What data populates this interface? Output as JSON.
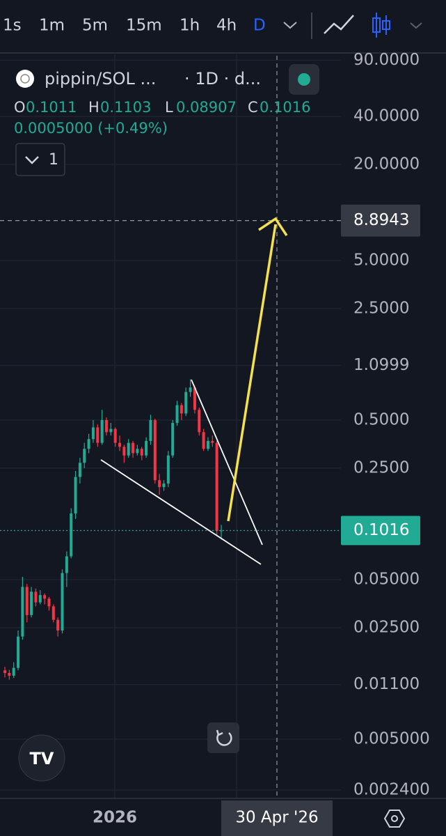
{
  "toolbar": {
    "intervals": [
      "1s",
      "1m",
      "5m",
      "15m",
      "1h",
      "4h",
      "D"
    ]
  },
  "legend": {
    "symbol": "pippin/SOL ...",
    "meta": "· 1D · d...",
    "o_label": "O",
    "h_label": "H",
    "l_label": "L",
    "c_label": "C",
    "change": "0.0005000 (+0.49%)",
    "indicators": "1"
  },
  "chart_data": {
    "type": "candlestick",
    "log_scale": true,
    "grid": true,
    "up_color": "#22ab94",
    "down_color": "#f23645",
    "ylim": [
      0.00215,
      96
    ],
    "yticks": [
      {
        "value": 90,
        "label": "90.0000"
      },
      {
        "value": 40,
        "label": "40.0000"
      },
      {
        "value": 20,
        "label": "20.0000"
      },
      {
        "value": 5,
        "label": "5.0000"
      },
      {
        "value": 2.5,
        "label": "2.5000"
      },
      {
        "value": 1.0999,
        "label": "1.0999"
      },
      {
        "value": 0.5,
        "label": "0.5000"
      },
      {
        "value": 0.25,
        "label": "0.2500"
      },
      {
        "value": 0.05,
        "label": "0.05000"
      },
      {
        "value": 0.025,
        "label": "0.02500"
      },
      {
        "value": 0.011,
        "label": "0.01100"
      },
      {
        "value": 0.005,
        "label": "0.005000"
      },
      {
        "value": 0.0024,
        "label": "0.002400"
      }
    ],
    "x_label": "2026",
    "crosshair": {
      "price": 8.8943,
      "date": "30 Apr '26"
    },
    "candles": [
      [
        0.0135,
        0.0142,
        0.0122,
        0.013
      ],
      [
        0.013,
        0.0136,
        0.0118,
        0.0125
      ],
      [
        0.0125,
        0.0152,
        0.0121,
        0.014
      ],
      [
        0.014,
        0.024,
        0.0135,
        0.022
      ],
      [
        0.022,
        0.052,
        0.021,
        0.045
      ],
      [
        0.045,
        0.047,
        0.027,
        0.03
      ],
      [
        0.03,
        0.045,
        0.029,
        0.042
      ],
      [
        0.042,
        0.044,
        0.034,
        0.036
      ],
      [
        0.036,
        0.043,
        0.035,
        0.04
      ],
      [
        0.04,
        0.041,
        0.035,
        0.038
      ],
      [
        0.038,
        0.039,
        0.032,
        0.034
      ],
      [
        0.034,
        0.035,
        0.027,
        0.028
      ],
      [
        0.028,
        0.029,
        0.022,
        0.024
      ],
      [
        0.024,
        0.058,
        0.023,
        0.055
      ],
      [
        0.055,
        0.075,
        0.045,
        0.07
      ],
      [
        0.07,
        0.14,
        0.068,
        0.13
      ],
      [
        0.13,
        0.24,
        0.12,
        0.22
      ],
      [
        0.22,
        0.29,
        0.2,
        0.27
      ],
      [
        0.27,
        0.36,
        0.25,
        0.33
      ],
      [
        0.33,
        0.41,
        0.31,
        0.38
      ],
      [
        0.38,
        0.5,
        0.36,
        0.45
      ],
      [
        0.45,
        0.47,
        0.34,
        0.36
      ],
      [
        0.36,
        0.58,
        0.35,
        0.5
      ],
      [
        0.5,
        0.52,
        0.4,
        0.42
      ],
      [
        0.42,
        0.48,
        0.4,
        0.44
      ],
      [
        0.44,
        0.45,
        0.34,
        0.36
      ],
      [
        0.36,
        0.4,
        0.32,
        0.34
      ],
      [
        0.34,
        0.35,
        0.27,
        0.3
      ],
      [
        0.3,
        0.38,
        0.29,
        0.36
      ],
      [
        0.36,
        0.37,
        0.29,
        0.31
      ],
      [
        0.31,
        0.35,
        0.3,
        0.33
      ],
      [
        0.33,
        0.34,
        0.28,
        0.3
      ],
      [
        0.3,
        0.39,
        0.29,
        0.37
      ],
      [
        0.37,
        0.54,
        0.35,
        0.5
      ],
      [
        0.5,
        0.51,
        0.2,
        0.21
      ],
      [
        0.21,
        0.23,
        0.17,
        0.19
      ],
      [
        0.19,
        0.21,
        0.18,
        0.2
      ],
      [
        0.2,
        0.32,
        0.19,
        0.3
      ],
      [
        0.3,
        0.5,
        0.29,
        0.48
      ],
      [
        0.48,
        0.66,
        0.46,
        0.62
      ],
      [
        0.62,
        0.64,
        0.5,
        0.55
      ],
      [
        0.55,
        0.8,
        0.53,
        0.75
      ],
      [
        0.75,
        0.9,
        0.7,
        0.8
      ],
      [
        0.8,
        0.82,
        0.55,
        0.58
      ],
      [
        0.58,
        0.6,
        0.4,
        0.42
      ],
      [
        0.42,
        0.44,
        0.32,
        0.33
      ],
      [
        0.33,
        0.39,
        0.32,
        0.37
      ],
      [
        0.37,
        0.4,
        0.34,
        0.36
      ],
      [
        0.36,
        0.37,
        0.095,
        0.1011
      ],
      [
        0.1011,
        0.1103,
        0.08907,
        0.1016
      ]
    ]
  }
}
